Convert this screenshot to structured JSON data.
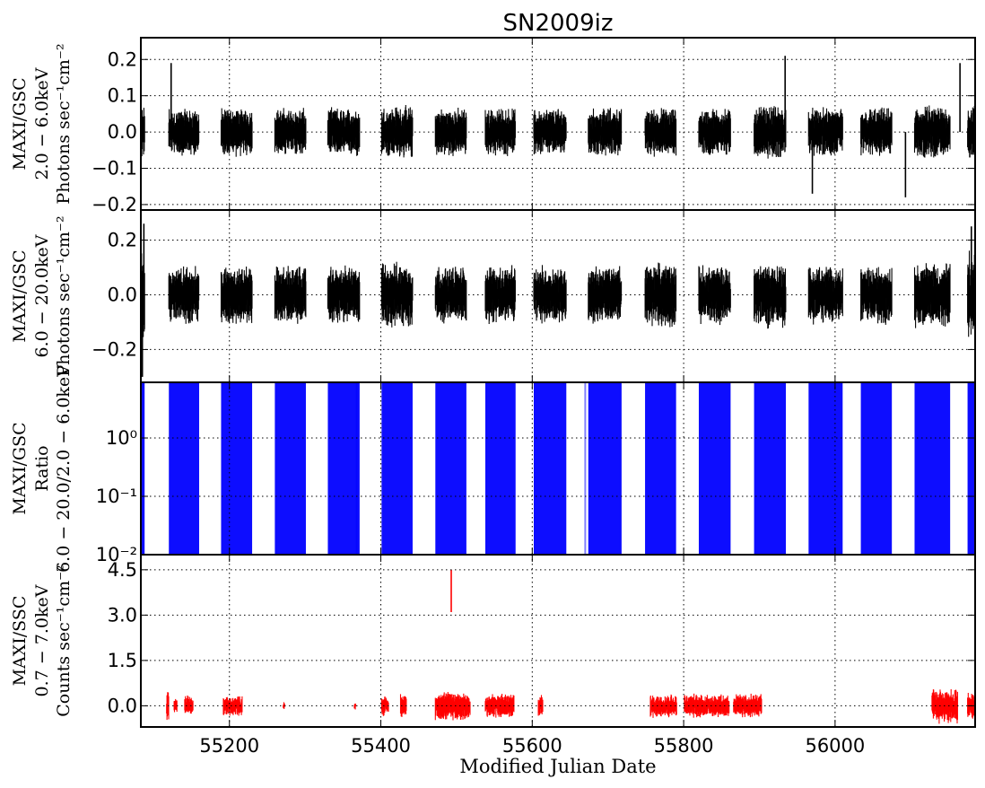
{
  "title": "SN2009iz",
  "xlabel": "Modified Julian Date",
  "chart_data": {
    "type": "line",
    "title": "SN2009iz",
    "xlabel": "Modified Julian Date",
    "xlim": [
      55083,
      56185
    ],
    "x_ticks": [
      55200,
      55400,
      55600,
      55800,
      56000
    ],
    "x_tick_labels": [
      "55200",
      "55400",
      "55600",
      "55800",
      "56000"
    ],
    "grid": true,
    "panels": [
      {
        "name": "gsc-low",
        "ylabel_lines": [
          "MAXI/GSC",
          "2.0 − 6.0keV",
          "Photons sec⁻¹cm⁻²"
        ],
        "ylim": [
          -0.215,
          0.26
        ],
        "y_ticks": [
          0.2,
          0.1,
          0.0,
          -0.1,
          -0.2
        ],
        "y_tick_labels": [
          "0.2",
          "0.1",
          "0.0",
          "−0.1",
          "−0.2"
        ],
        "color": "#000000",
        "segments": [
          {
            "start": 55083,
            "end": 55088,
            "spread": 0.055
          },
          {
            "start": 55120,
            "end": 55160,
            "spread": 0.05
          },
          {
            "start": 55189,
            "end": 55230,
            "spread": 0.05
          },
          {
            "start": 55260,
            "end": 55301,
            "spread": 0.05
          },
          {
            "start": 55330,
            "end": 55372,
            "spread": 0.05
          },
          {
            "start": 55401,
            "end": 55442,
            "spread": 0.055
          },
          {
            "start": 55472,
            "end": 55513,
            "spread": 0.05
          },
          {
            "start": 55538,
            "end": 55578,
            "spread": 0.05
          },
          {
            "start": 55602,
            "end": 55645,
            "spread": 0.05
          },
          {
            "start": 55674,
            "end": 55718,
            "spread": 0.05
          },
          {
            "start": 55749,
            "end": 55790,
            "spread": 0.05
          },
          {
            "start": 55820,
            "end": 55862,
            "spread": 0.05
          },
          {
            "start": 55893,
            "end": 55935,
            "spread": 0.055
          },
          {
            "start": 55965,
            "end": 56010,
            "spread": 0.05
          },
          {
            "start": 56034,
            "end": 56075,
            "spread": 0.05
          },
          {
            "start": 56105,
            "end": 56152,
            "spread": 0.055
          },
          {
            "start": 56175,
            "end": 56185,
            "spread": 0.06
          }
        ],
        "notable": [
          {
            "x": 55123,
            "y": 0.19
          },
          {
            "x": 55934,
            "y": 0.21
          },
          {
            "x": 56165,
            "y": 0.19
          },
          {
            "x": 56093,
            "y": -0.18
          },
          {
            "x": 55970,
            "y": -0.17
          }
        ]
      },
      {
        "name": "gsc-high",
        "ylabel_lines": [
          "MAXI/GSC",
          "6.0 − 20.0keV",
          "Photons sec⁻¹cm⁻²"
        ],
        "ylim": [
          -0.32,
          0.31
        ],
        "y_ticks": [
          0.2,
          0.0,
          -0.2
        ],
        "y_tick_labels": [
          "0.2",
          "0.0",
          "−0.2"
        ],
        "color": "#000000",
        "segments": [
          {
            "start": 55083,
            "end": 55088,
            "spread": 0.12
          },
          {
            "start": 55120,
            "end": 55160,
            "spread": 0.08
          },
          {
            "start": 55189,
            "end": 55230,
            "spread": 0.08
          },
          {
            "start": 55260,
            "end": 55301,
            "spread": 0.08
          },
          {
            "start": 55330,
            "end": 55372,
            "spread": 0.08
          },
          {
            "start": 55401,
            "end": 55442,
            "spread": 0.09
          },
          {
            "start": 55472,
            "end": 55513,
            "spread": 0.08
          },
          {
            "start": 55538,
            "end": 55578,
            "spread": 0.08
          },
          {
            "start": 55602,
            "end": 55645,
            "spread": 0.08
          },
          {
            "start": 55674,
            "end": 55718,
            "spread": 0.08
          },
          {
            "start": 55749,
            "end": 55790,
            "spread": 0.09
          },
          {
            "start": 55820,
            "end": 55862,
            "spread": 0.08
          },
          {
            "start": 55893,
            "end": 55935,
            "spread": 0.09
          },
          {
            "start": 55965,
            "end": 56010,
            "spread": 0.08
          },
          {
            "start": 56034,
            "end": 56075,
            "spread": 0.08
          },
          {
            "start": 56105,
            "end": 56152,
            "spread": 0.09
          },
          {
            "start": 56175,
            "end": 56185,
            "spread": 0.12
          }
        ],
        "notable": [
          {
            "x": 55085,
            "y": -0.3
          },
          {
            "x": 55087,
            "y": 0.26
          },
          {
            "x": 56180,
            "y": 0.25
          }
        ]
      },
      {
        "name": "gsc-ratio",
        "ylabel_lines": [
          "MAXI/GSC",
          "Ratio",
          "6.0 − 20.0/2.0 − 6.0keV"
        ],
        "scale": "log",
        "ylim": [
          0.01,
          9
        ],
        "y_ticks": [
          1,
          0.1,
          0.01
        ],
        "y_tick_labels": [
          "10⁰",
          "10⁻¹",
          "10⁻²"
        ],
        "color": "#0000ff",
        "bands": [
          [
            55083,
            55088
          ],
          [
            55120,
            55160
          ],
          [
            55189,
            55230
          ],
          [
            55260,
            55301
          ],
          [
            55330,
            55372
          ],
          [
            55401,
            55442
          ],
          [
            55472,
            55513
          ],
          [
            55538,
            55578
          ],
          [
            55602,
            55645
          ],
          [
            55674,
            55718
          ],
          [
            55749,
            55790
          ],
          [
            55820,
            55862
          ],
          [
            55893,
            55935
          ],
          [
            55965,
            56010
          ],
          [
            56034,
            56075
          ],
          [
            56105,
            56152
          ],
          [
            56175,
            56185
          ]
        ],
        "thin_lines": [
          55368,
          55670
        ]
      },
      {
        "name": "ssc",
        "ylabel_lines": [
          "MAXI/SSC",
          "0.7 − 7.0keV",
          "Counts sec⁻¹cm⁻²"
        ],
        "ylim": [
          -0.7,
          5.0
        ],
        "y_ticks": [
          4.5,
          3.0,
          1.5,
          0.0
        ],
        "y_tick_labels": [
          "4.5",
          "3.0",
          "1.5",
          "0.0"
        ],
        "color": "#ff0000",
        "segments": [
          {
            "start": 55117,
            "end": 55120,
            "spread": 0.4
          },
          {
            "start": 55127,
            "end": 55131,
            "spread": 0.2
          },
          {
            "start": 55141,
            "end": 55152,
            "spread": 0.25
          },
          {
            "start": 55192,
            "end": 55217,
            "spread": 0.25
          },
          {
            "start": 55271,
            "end": 55273,
            "spread": 0.1
          },
          {
            "start": 55365,
            "end": 55367,
            "spread": 0.1
          },
          {
            "start": 55401,
            "end": 55410,
            "spread": 0.25
          },
          {
            "start": 55426,
            "end": 55434,
            "spread": 0.3
          },
          {
            "start": 55472,
            "end": 55518,
            "spread": 0.35
          },
          {
            "start": 55538,
            "end": 55576,
            "spread": 0.3
          },
          {
            "start": 55608,
            "end": 55614,
            "spread": 0.3
          },
          {
            "start": 55756,
            "end": 55791,
            "spread": 0.3
          },
          {
            "start": 55801,
            "end": 55860,
            "spread": 0.3
          },
          {
            "start": 55866,
            "end": 55903,
            "spread": 0.3
          },
          {
            "start": 56128,
            "end": 56162,
            "spread": 0.45
          },
          {
            "start": 56175,
            "end": 56185,
            "spread": 0.35
          }
        ],
        "notable": [
          {
            "x": 55493,
            "y_low": 3.1,
            "y_high": 4.5
          }
        ]
      }
    ]
  }
}
